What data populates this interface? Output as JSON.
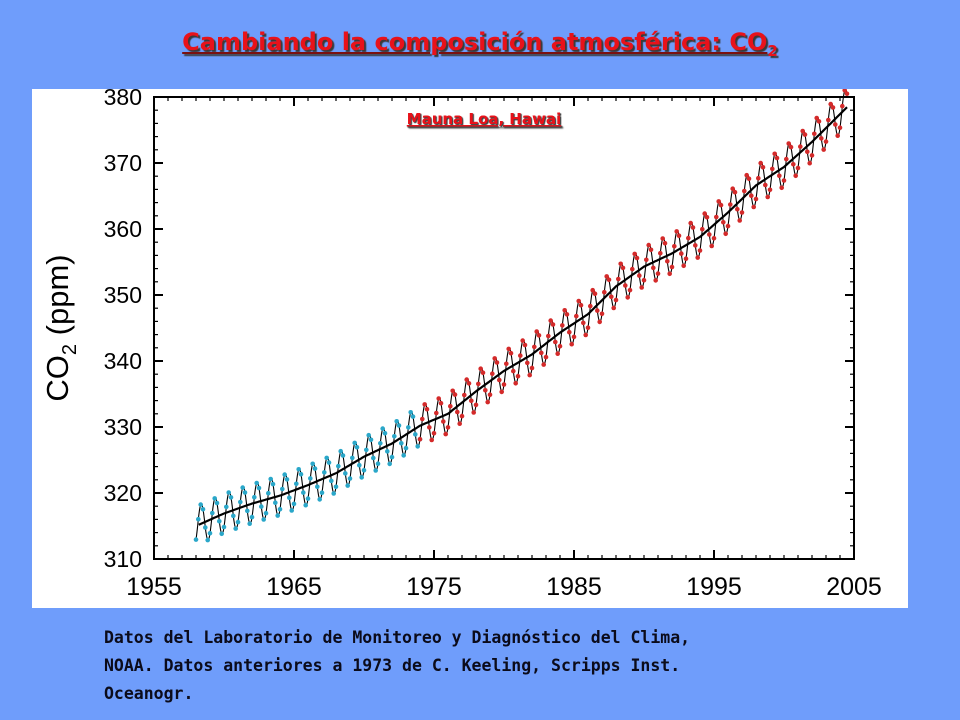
{
  "slide": {
    "title": "Cambiando la composición atmosférica: CO",
    "title_subscript": "2",
    "caption": "Datos del Laboratorio de Monitoreo y Diagnóstico del Clima,\nNOAA. Datos anteriores a 1973 de C. Keeling, Scripps Inst.\nOceanogr."
  },
  "colors": {
    "background": "#6f9dfb",
    "title": "#e8121a",
    "series_scripps": "#2aa7c9",
    "series_noaa": "#d42a2a",
    "trend": "#000000"
  },
  "chart_data": {
    "type": "line",
    "title": "",
    "annotation": "Mauna Loa, Hawai",
    "ylabel": "CO",
    "ylabel_subscript": "2",
    "ylabel_unit": " (ppm)",
    "xlabel": "",
    "xlim": [
      1955,
      2005
    ],
    "ylim": [
      310,
      380
    ],
    "xticks": [
      1955,
      1965,
      1975,
      1985,
      1995,
      2005
    ],
    "yticks": [
      310,
      320,
      330,
      340,
      350,
      360,
      370,
      380
    ],
    "grid": false,
    "legend": "none",
    "deseasonalized_trend": {
      "x": [
        1958,
        1960,
        1962,
        1964,
        1966,
        1968,
        1970,
        1972,
        1974,
        1976,
        1978,
        1980,
        1982,
        1984,
        1986,
        1988,
        1990,
        1992,
        1994,
        1996,
        1998,
        2000,
        2002,
        2004
      ],
      "y": [
        315.0,
        316.9,
        318.4,
        319.6,
        321.2,
        323.0,
        325.5,
        327.5,
        330.2,
        332.0,
        335.4,
        338.5,
        341.0,
        344.3,
        347.1,
        351.3,
        354.3,
        356.3,
        358.8,
        362.5,
        366.6,
        369.4,
        373.2,
        377.4
      ]
    },
    "seasonal_amplitude_ppm": 6.0,
    "series": [
      {
        "name": "",
        "x_range": [
          1958,
          1974
        ],
        "marker_color": "#2aa7c9"
      },
      {
        "name": "",
        "x_range": [
          1974,
          2004.5
        ],
        "marker_color": "#d42a2a"
      }
    ]
  }
}
